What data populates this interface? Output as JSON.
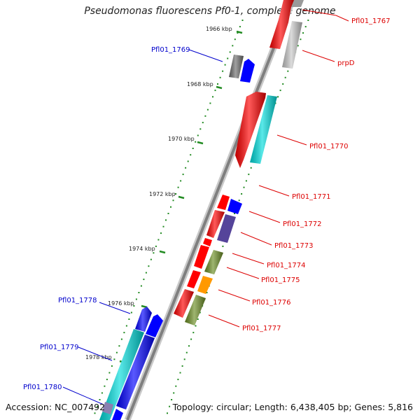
{
  "title": "Pseudomonas fluorescens Pf0-1, complete genome",
  "footer": {
    "accession": "Accession: NC_007492",
    "summary": "Topology: circular; Length: 6,438,405 bp; Genes: 5,816"
  },
  "ruler_labels": [
    "1966 kbp",
    "1968 kbp",
    "1970 kbp",
    "1972 kbp",
    "1974 kbp",
    "1976 kbp",
    "1978 kbp"
  ],
  "gene_labels": [
    {
      "text": "Pfl01_1767",
      "color": "#dd0000"
    },
    {
      "text": "prpD",
      "color": "#dd0000"
    },
    {
      "text": "Pfl01_1769",
      "color": "#0000cc"
    },
    {
      "text": "Pfl01_1770",
      "color": "#dd0000"
    },
    {
      "text": "Pfl01_1771",
      "color": "#dd0000"
    },
    {
      "text": "Pfl01_1772",
      "color": "#dd0000"
    },
    {
      "text": "Pfl01_1773",
      "color": "#dd0000"
    },
    {
      "text": "Pfl01_1774",
      "color": "#dd0000"
    },
    {
      "text": "Pfl01_1775",
      "color": "#dd0000"
    },
    {
      "text": "Pfl01_1776",
      "color": "#dd0000"
    },
    {
      "text": "Pfl01_1777",
      "color": "#dd0000"
    },
    {
      "text": "Pfl01_1778",
      "color": "#0000cc"
    },
    {
      "text": "Pfl01_1779",
      "color": "#0000cc"
    },
    {
      "text": "Pfl01_1780",
      "color": "#0000cc"
    }
  ],
  "colors": {
    "backbone": "#8a8a8a",
    "tick": "#228b22",
    "red": "#ff0000",
    "gray": "#bbbbbb",
    "darkgray": "#6e6e6e",
    "blue": "#0000ff",
    "cyan": "#00dddd",
    "purple": "#55449a",
    "olive": "#6b8e23",
    "orange": "#ff9900"
  }
}
